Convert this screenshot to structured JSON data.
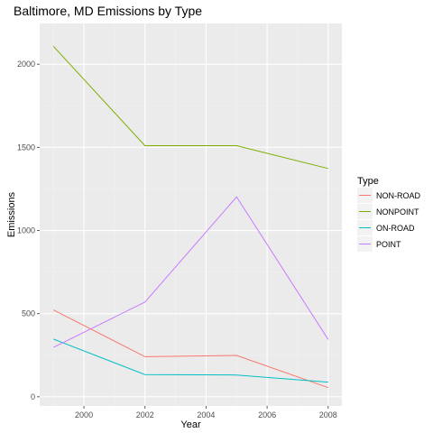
{
  "chart_data": {
    "type": "line",
    "title": "Baltimore, MD Emissions by Type",
    "xlabel": "Year",
    "ylabel": "Emissions",
    "x": [
      1999,
      2002,
      2005,
      2008
    ],
    "xlim": [
      1998.55,
      2008.45
    ],
    "ylim": [
      -55,
      2245
    ],
    "xticks": [
      2000,
      2002,
      2004,
      2006,
      2008
    ],
    "yticks": [
      0,
      500,
      1000,
      1500,
      2000
    ],
    "grid": true,
    "legend": {
      "title": "Type",
      "placement": "right"
    },
    "series": [
      {
        "name": "NON-ROAD",
        "color": "#F8766D",
        "values": [
          522,
          241,
          249,
          55
        ]
      },
      {
        "name": "NONPOINT",
        "color": "#7CAE00",
        "values": [
          2108,
          1510,
          1510,
          1373
        ]
      },
      {
        "name": "ON-ROAD",
        "color": "#00BFC4",
        "values": [
          347,
          134,
          131,
          88
        ]
      },
      {
        "name": "POINT",
        "color": "#C77CFF",
        "values": [
          297,
          570,
          1202,
          345
        ]
      }
    ]
  }
}
